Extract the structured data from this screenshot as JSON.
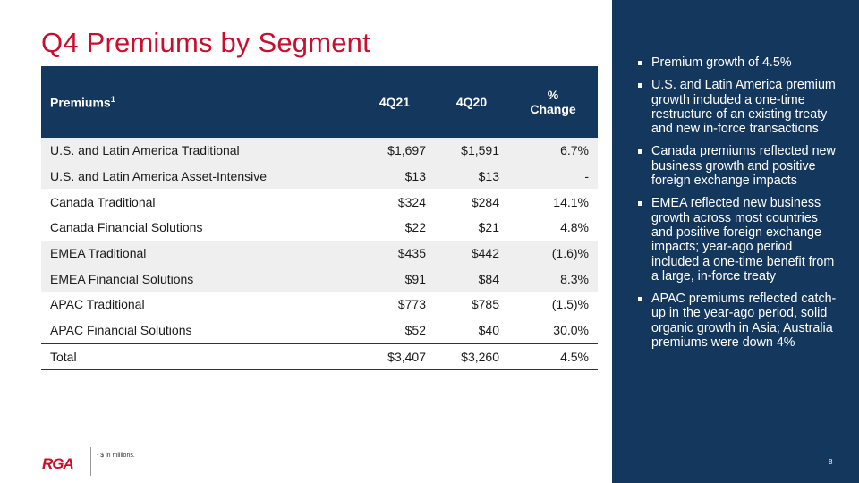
{
  "title": "Q4 Premiums by Segment",
  "table": {
    "headers": {
      "segment": "Premiums",
      "segment_sup": "1",
      "q21": "4Q21",
      "q20": "4Q20",
      "change_line1": "%",
      "change_line2": "Change"
    },
    "rows": [
      {
        "segment": "U.S. and Latin America Traditional",
        "q21": "$1,697",
        "q20": "$1,591",
        "change": "6.7%"
      },
      {
        "segment": "U.S. and Latin America Asset-Intensive",
        "q21": "$13",
        "q20": "$13",
        "change": "-"
      },
      {
        "segment": "Canada Traditional",
        "q21": "$324",
        "q20": "$284",
        "change": "14.1%"
      },
      {
        "segment": "Canada Financial Solutions",
        "q21": "$22",
        "q20": "$21",
        "change": "4.8%"
      },
      {
        "segment": "EMEA Traditional",
        "q21": "$435",
        "q20": "$442",
        "change": "(1.6)%"
      },
      {
        "segment": "EMEA Financial Solutions",
        "q21": "$91",
        "q20": "$84",
        "change": "8.3%"
      },
      {
        "segment": "APAC Traditional",
        "q21": "$773",
        "q20": "$785",
        "change": "(1.5)%"
      },
      {
        "segment": "APAC Financial Solutions",
        "q21": "$52",
        "q20": "$40",
        "change": "30.0%"
      }
    ],
    "total": {
      "segment": "Total",
      "q21": "$3,407",
      "q20": "$3,260",
      "change": "4.5%"
    }
  },
  "bullets": [
    "Premium growth of 4.5%",
    "U.S. and Latin America premium growth included a one-time restructure of an existing treaty and new in-force transactions",
    "Canada premiums reflected new business growth and positive foreign exchange impacts",
    "EMEA reflected new business growth across most countries and positive foreign exchange impacts; year-ago period included a one-time benefit from a large, in-force treaty",
    "APAC premiums reflected catch-up in the year-ago period, solid organic growth in Asia; Australia premiums were down 4%"
  ],
  "footer": {
    "logo_text": "RGA",
    "footnote": "¹ $ in millions.",
    "page_number": "8"
  },
  "colors": {
    "title_red": "#c8102e",
    "navy": "#14375e",
    "row_shade": "#efefef"
  }
}
